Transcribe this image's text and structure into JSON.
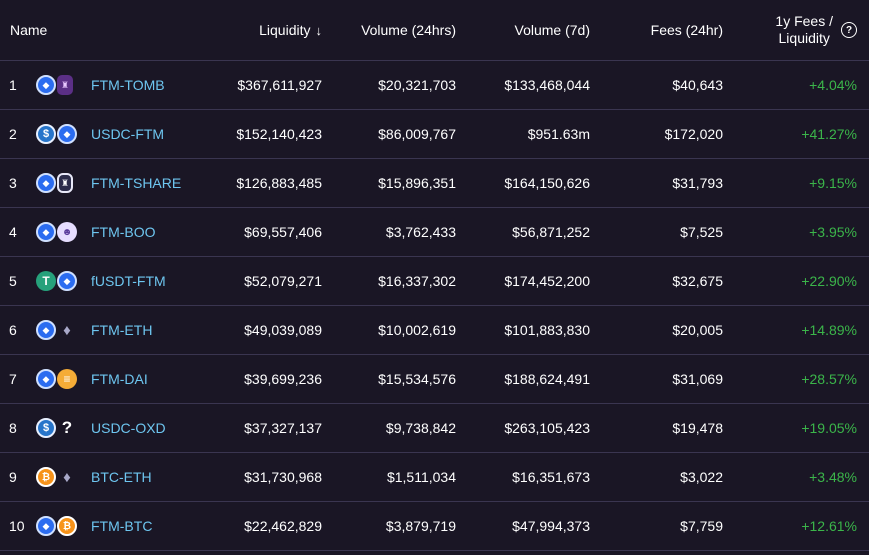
{
  "header": {
    "name": "Name",
    "liquidity": "Liquidity",
    "sort_arrow": "↓",
    "volume_24h": "Volume (24hrs)",
    "volume_7d": "Volume (7d)",
    "fees_24h": "Fees (24hr)",
    "fees_liq_line1": "1y Fees /",
    "fees_liq_line2": "Liquidity",
    "help_glyph": "?"
  },
  "rows": [
    {
      "rank": "1",
      "pair": "FTM-TOMB",
      "liquidity": "$367,611,927",
      "vol24": "$20,321,703",
      "vol7": "$133,468,044",
      "fees": "$40,643",
      "apr": "+4.04%",
      "icons": [
        "ftm-icon",
        "tomb-icon"
      ]
    },
    {
      "rank": "2",
      "pair": "USDC-FTM",
      "liquidity": "$152,140,423",
      "vol24": "$86,009,767",
      "vol7": "$951.63m",
      "fees": "$172,020",
      "apr": "+41.27%",
      "icons": [
        "usdc-icon",
        "ftm-icon"
      ]
    },
    {
      "rank": "3",
      "pair": "FTM-TSHARE",
      "liquidity": "$126,883,485",
      "vol24": "$15,896,351",
      "vol7": "$164,150,626",
      "fees": "$31,793",
      "apr": "+9.15%",
      "icons": [
        "ftm-icon",
        "tshare-icon"
      ]
    },
    {
      "rank": "4",
      "pair": "FTM-BOO",
      "liquidity": "$69,557,406",
      "vol24": "$3,762,433",
      "vol7": "$56,871,252",
      "fees": "$7,525",
      "apr": "+3.95%",
      "icons": [
        "ftm-icon",
        "boo-icon"
      ]
    },
    {
      "rank": "5",
      "pair": "fUSDT-FTM",
      "liquidity": "$52,079,271",
      "vol24": "$16,337,302",
      "vol7": "$174,452,200",
      "fees": "$32,675",
      "apr": "+22.90%",
      "icons": [
        "usdt-icon",
        "ftm-icon"
      ]
    },
    {
      "rank": "6",
      "pair": "FTM-ETH",
      "liquidity": "$49,039,089",
      "vol24": "$10,002,619",
      "vol7": "$101,883,830",
      "fees": "$20,005",
      "apr": "+14.89%",
      "icons": [
        "ftm-icon",
        "eth-icon"
      ]
    },
    {
      "rank": "7",
      "pair": "FTM-DAI",
      "liquidity": "$39,699,236",
      "vol24": "$15,534,576",
      "vol7": "$188,624,491",
      "fees": "$31,069",
      "apr": "+28.57%",
      "icons": [
        "ftm-icon",
        "dai-icon"
      ]
    },
    {
      "rank": "8",
      "pair": "USDC-OXD",
      "liquidity": "$37,327,137",
      "vol24": "$9,738,842",
      "vol7": "$263,105,423",
      "fees": "$19,478",
      "apr": "+19.05%",
      "icons": [
        "usdc-icon",
        "unknown-token-icon"
      ]
    },
    {
      "rank": "9",
      "pair": "BTC-ETH",
      "liquidity": "$31,730,968",
      "vol24": "$1,511,034",
      "vol7": "$16,351,673",
      "fees": "$3,022",
      "apr": "+3.48%",
      "icons": [
        "btc-icon",
        "eth-icon"
      ]
    },
    {
      "rank": "10",
      "pair": "FTM-BTC",
      "liquidity": "$22,462,829",
      "vol24": "$3,879,719",
      "vol7": "$47,994,373",
      "fees": "$7,759",
      "apr": "+12.61%",
      "icons": [
        "ftm-icon",
        "btc-icon"
      ]
    }
  ],
  "colors": {
    "background": "#1a1625",
    "pair_link": "#6ec6f0",
    "positive": "#3bb54a",
    "divider": "#3a3550"
  }
}
